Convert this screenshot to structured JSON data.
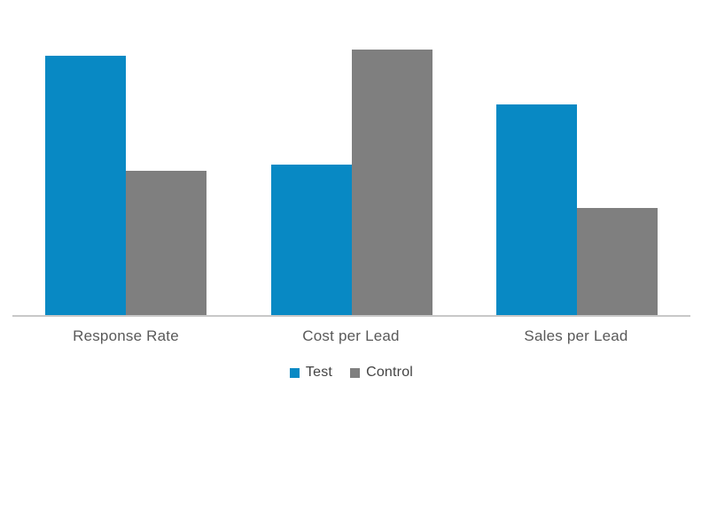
{
  "chart_data": {
    "type": "bar",
    "title": "",
    "categories": [
      "Response Rate",
      "Cost per Lead",
      "Sales per Lead"
    ],
    "series": [
      {
        "name": "Test",
        "color": "#0889C4",
        "values": [
          90,
          52,
          73
        ]
      },
      {
        "name": "Control",
        "color": "#7F7F7F",
        "values": [
          50,
          92,
          37
        ]
      }
    ],
    "xlabel": "",
    "ylabel": "",
    "ylim": [
      0,
      100
    ],
    "values_note": "no value axis shown in chart; values estimated from relative bar heights on a 0-100 scale",
    "legend": {
      "position": "bottom"
    },
    "grid": false,
    "y_axis_visible": false,
    "axis_line_color": "#C8C8C8",
    "category_label_color": "#595959",
    "legend_label_color": "#444444",
    "background_color": "#FFFFFF"
  }
}
